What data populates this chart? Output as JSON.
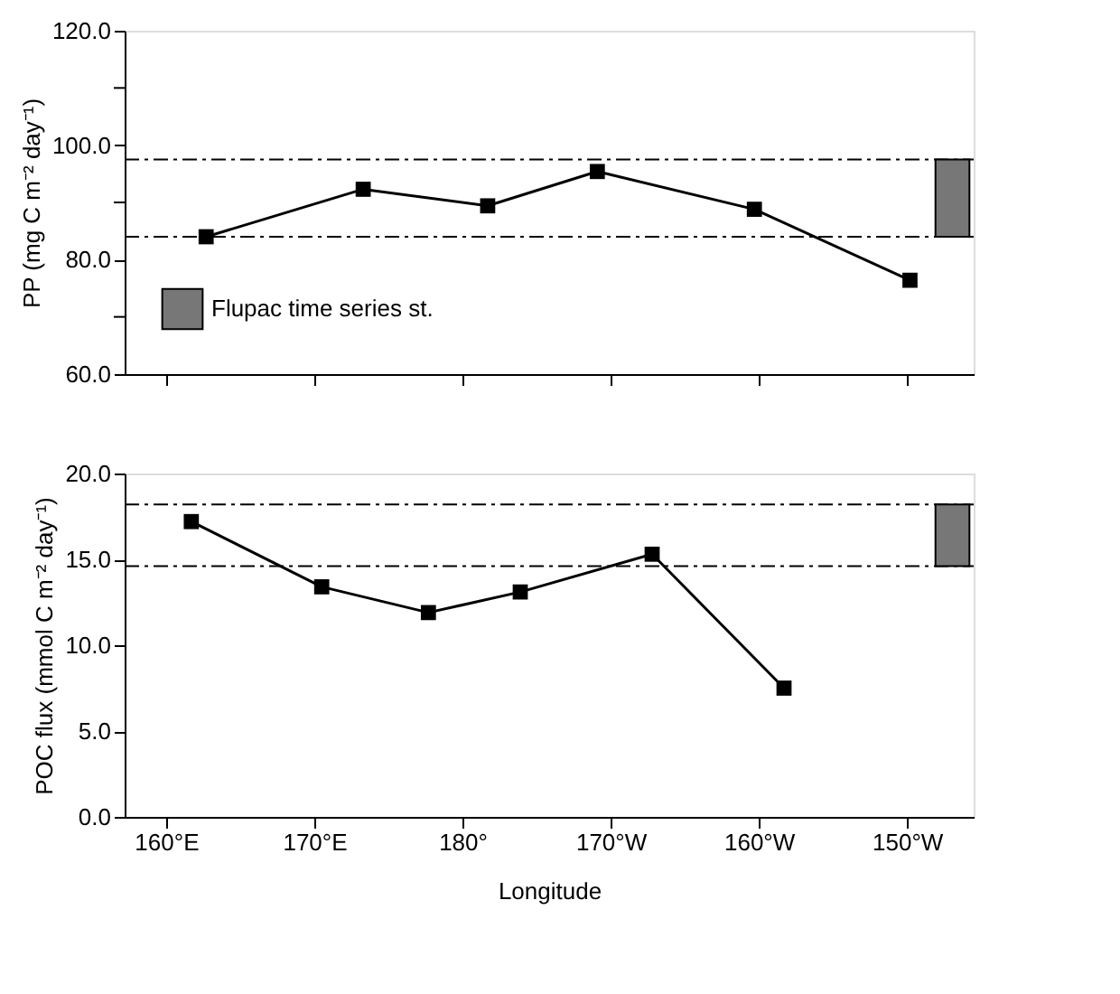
{
  "chart_data": [
    {
      "type": "line",
      "ylabel": "PP (mg C m⁻² day⁻¹)",
      "marker": "square",
      "line_style": "solid",
      "grid": false,
      "legend": "bottom left",
      "tick_labels": "y",
      "xlim": [
        157.2,
        214.5
      ],
      "xticks": [
        {
          "value": 160,
          "label": null
        },
        {
          "value": 170,
          "label": null
        },
        {
          "value": 180,
          "label": null
        },
        {
          "value": 190,
          "label": null
        },
        {
          "value": 200,
          "label": null
        },
        {
          "value": 210,
          "label": null
        }
      ],
      "ylim": [
        60,
        120
      ],
      "yticks": [
        {
          "value": 60,
          "label": "60.0"
        },
        {
          "value": 70,
          "label": null
        },
        {
          "value": 80,
          "label": "80.0"
        },
        {
          "value": 90,
          "label": null
        },
        {
          "value": 100,
          "label": "100.0"
        },
        {
          "value": 110,
          "label": null
        },
        {
          "value": 120,
          "label": "120.0"
        }
      ],
      "series": [
        {
          "color": "#000000",
          "x": [
            162.7,
            173.3,
            181.7,
            189.1,
            199.7,
            210.2
          ],
          "values": [
            84.0,
            92.3,
            89.4,
            95.4,
            88.8,
            76.4
          ]
        }
      ],
      "ref_lines": [
        {
          "axis": "y",
          "value": 97.5,
          "line_style": "dashed",
          "color": "#000000"
        },
        {
          "axis": "y",
          "value": 84.0,
          "line_style": "dashed",
          "color": "#000000"
        }
      ],
      "bands": [
        {
          "axis": "y",
          "from": 84.0,
          "to": 97.5,
          "label": "Flupac time series st.",
          "color": "#777777"
        }
      ]
    },
    {
      "type": "line",
      "xlabel": "Longitude",
      "ylabel": "POC flux (mmol C m⁻² day⁻¹)",
      "marker": "square",
      "line_style": "solid",
      "grid": false,
      "xlim": [
        157.2,
        214.5
      ],
      "xticks": [
        {
          "value": 160,
          "label": "160°E"
        },
        {
          "value": 170,
          "label": "170°E"
        },
        {
          "value": 180,
          "label": "180°"
        },
        {
          "value": 190,
          "label": "170°W"
        },
        {
          "value": 200,
          "label": "160°W"
        },
        {
          "value": 210,
          "label": "150°W"
        }
      ],
      "ylim": [
        0,
        20
      ],
      "yticks": [
        {
          "value": 0,
          "label": "0.0"
        },
        {
          "value": 5,
          "label": "5.0"
        },
        {
          "value": 10,
          "label": "10.0"
        },
        {
          "value": 15,
          "label": "15.0"
        },
        {
          "value": 20,
          "label": "20.0"
        }
      ],
      "series": [
        {
          "color": "#000000",
          "x": [
            161.7,
            170.5,
            177.7,
            183.9,
            192.8,
            201.7
          ],
          "values": [
            17.2,
            13.4,
            11.9,
            13.1,
            15.3,
            7.5
          ]
        }
      ],
      "ref_lines": [
        {
          "axis": "y",
          "value": 18.2,
          "line_style": "dashed",
          "color": "#000000"
        },
        {
          "axis": "y",
          "value": 14.6,
          "line_style": "dashed",
          "color": "#000000"
        }
      ],
      "bands": [
        {
          "axis": "y",
          "from": 14.6,
          "to": 18.2,
          "color": "#777777"
        }
      ]
    }
  ]
}
